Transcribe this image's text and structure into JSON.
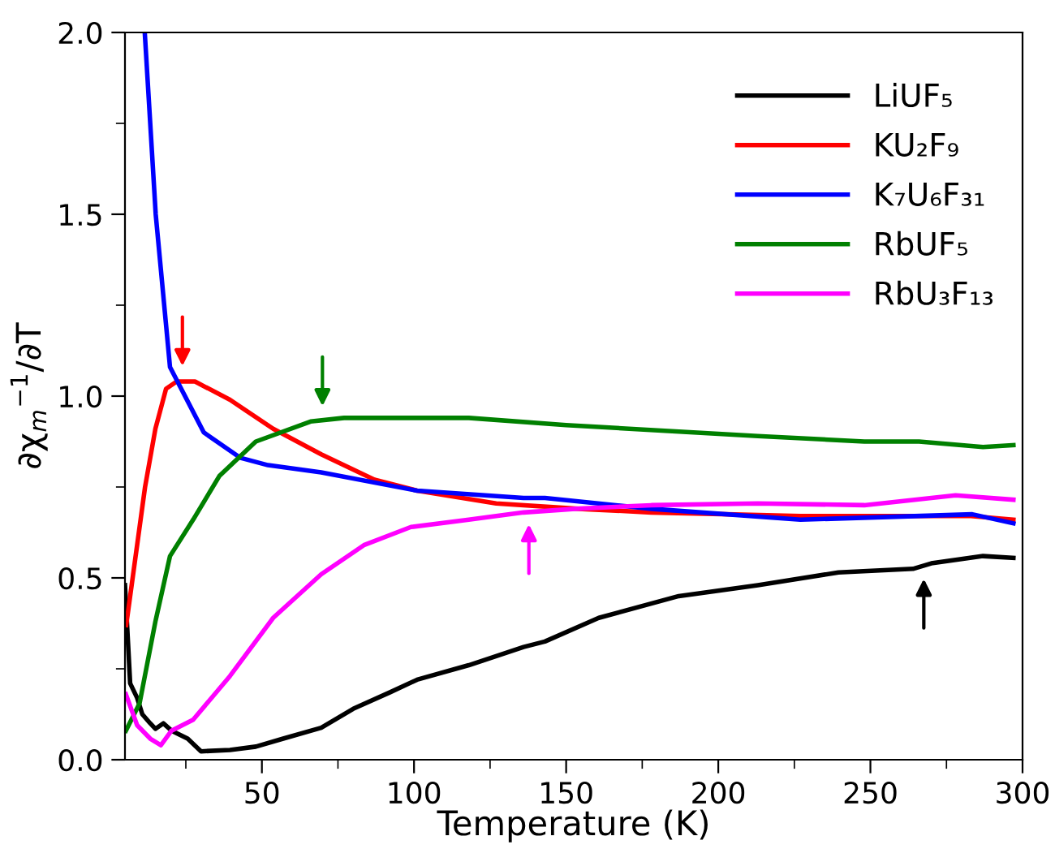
{
  "chart_data": {
    "type": "line",
    "xlabel": "Temperature (K)",
    "ylabel": "∂χ$_{m}$$^{−1}$/∂T",
    "xlim": [
      5,
      300
    ],
    "xticks": [
      50,
      100,
      150,
      200,
      250,
      300
    ],
    "ylim": [
      0,
      2.0
    ],
    "yticks": [
      {
        "value": 0,
        "label": "0.0"
      },
      0.5,
      {
        "value": 1,
        "label": "1.0"
      },
      1.5,
      {
        "value": 2,
        "label": "2.0"
      }
    ],
    "grid": false,
    "legend": "top right",
    "marker": "none",
    "line_style": "solid",
    "series": [
      {
        "name": "LiUF₅",
        "color": "#000000",
        "x": [
          5,
          6.7,
          9,
          10.7,
          13.3,
          15,
          17.6,
          20.3,
          25.6,
          30,
          39.5,
          48,
          57,
          69.5,
          80,
          92,
          101,
          118,
          136,
          143,
          160.7,
          187,
          213,
          239.5,
          264,
          270,
          287,
          297
        ],
        "values": [
          0.48,
          0.21,
          0.17,
          0.125,
          0.1,
          0.085,
          0.1,
          0.08,
          0.058,
          0.023,
          0.027,
          0.036,
          0.058,
          0.088,
          0.14,
          0.185,
          0.22,
          0.26,
          0.31,
          0.325,
          0.39,
          0.45,
          0.48,
          0.515,
          0.525,
          0.54,
          0.56,
          0.555
        ]
      },
      {
        "name": "KU₂F₉",
        "color": "#ff0000",
        "x": [
          5.4,
          11.6,
          15,
          18.5,
          22,
          28,
          39.5,
          53.7,
          69.5,
          87,
          101,
          127,
          154,
          178,
          227,
          283,
          297
        ],
        "values": [
          0.37,
          0.75,
          0.91,
          1.02,
          1.04,
          1.04,
          0.99,
          0.91,
          0.84,
          0.77,
          0.74,
          0.705,
          0.69,
          0.68,
          0.67,
          0.67,
          0.66
        ]
      },
      {
        "name": "K₇U₆F₃₁",
        "color": "#0000ff",
        "x": [
          11.5,
          15.1,
          19.8,
          30.9,
          43,
          52,
          69.5,
          101,
          136,
          143,
          178,
          227,
          283.5,
          297
        ],
        "values": [
          2.0,
          1.5,
          1.08,
          0.9,
          0.83,
          0.81,
          0.79,
          0.74,
          0.72,
          0.72,
          0.69,
          0.66,
          0.675,
          0.65
        ]
      },
      {
        "name": "RbUF₅",
        "color": "#008000",
        "x": [
          5.3,
          9.8,
          15,
          19.8,
          27.4,
          36,
          48,
          66,
          77,
          101,
          118,
          150,
          160.7,
          213,
          248,
          266,
          287,
          297
        ],
        "values": [
          0.08,
          0.155,
          0.38,
          0.56,
          0.66,
          0.78,
          0.875,
          0.93,
          0.94,
          0.94,
          0.94,
          0.92,
          0.915,
          0.89,
          0.875,
          0.875,
          0.86,
          0.865
        ]
      },
      {
        "name": "RbU₃F₁₃",
        "color": "#ff00ff",
        "x": [
          5.3,
          9,
          13.3,
          16.8,
          20.3,
          27.4,
          39.5,
          53.7,
          69.5,
          83.5,
          99,
          118,
          136,
          153,
          178,
          213,
          248,
          278,
          297
        ],
        "values": [
          0.18,
          0.095,
          0.058,
          0.04,
          0.08,
          0.11,
          0.23,
          0.39,
          0.51,
          0.59,
          0.64,
          0.66,
          0.68,
          0.69,
          0.7,
          0.705,
          0.7,
          0.727,
          0.715
        ]
      }
    ]
  }
}
